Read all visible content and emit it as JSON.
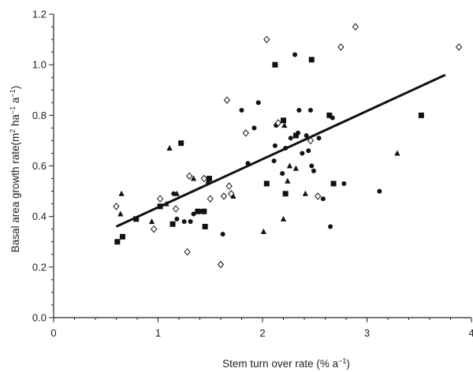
{
  "chart_data": {
    "type": "scatter",
    "title": "",
    "xlabel_parts": [
      "Stem turn over rate (% a",
      "−1",
      ")"
    ],
    "ylabel_parts": [
      "Basal area growth rate(m",
      "2",
      " ha",
      "−1",
      " a",
      "−1",
      ")"
    ],
    "xlim": [
      0,
      4
    ],
    "ylim": [
      0,
      1.2
    ],
    "x_ticks": [
      0,
      1,
      2,
      3,
      4
    ],
    "x_tick_labels": [
      "0",
      "1",
      "2",
      "3",
      "4"
    ],
    "y_ticks": [
      0.0,
      0.2,
      0.4,
      0.6,
      0.8,
      1.0,
      1.2
    ],
    "y_tick_labels": [
      "0.0",
      "0.2",
      "0.4",
      "0.6",
      "0.8",
      "1.0",
      "1.2"
    ],
    "grid": false,
    "legend": "none",
    "series": [
      {
        "marker": "circle",
        "color": "#111111",
        "points": [
          [
            1.15,
            0.49
          ],
          [
            1.18,
            0.39
          ],
          [
            1.25,
            0.38
          ],
          [
            1.31,
            0.38
          ],
          [
            1.34,
            0.41
          ],
          [
            1.4,
            0.42
          ],
          [
            1.62,
            0.33
          ],
          [
            1.8,
            0.82
          ],
          [
            1.86,
            0.61
          ],
          [
            1.92,
            0.75
          ],
          [
            1.96,
            0.85
          ],
          [
            2.11,
            0.62
          ],
          [
            2.12,
            0.68
          ],
          [
            2.13,
            0.76
          ],
          [
            2.19,
            0.57
          ],
          [
            2.22,
            0.67
          ],
          [
            2.27,
            0.71
          ],
          [
            2.31,
            1.04
          ],
          [
            2.34,
            0.73
          ],
          [
            2.35,
            0.82
          ],
          [
            2.38,
            0.65
          ],
          [
            2.42,
            0.72
          ],
          [
            2.44,
            0.66
          ],
          [
            2.46,
            0.82
          ],
          [
            2.47,
            0.6
          ],
          [
            2.49,
            0.58
          ],
          [
            2.54,
            0.71
          ],
          [
            2.58,
            0.47
          ],
          [
            2.65,
            0.36
          ],
          [
            2.67,
            0.79
          ],
          [
            2.78,
            0.53
          ],
          [
            3.12,
            0.5
          ]
        ]
      },
      {
        "marker": "square",
        "color": "#111111",
        "points": [
          [
            0.61,
            0.3
          ],
          [
            0.66,
            0.32
          ],
          [
            0.79,
            0.39
          ],
          [
            1.02,
            0.44
          ],
          [
            1.14,
            0.37
          ],
          [
            1.22,
            0.69
          ],
          [
            1.38,
            0.42
          ],
          [
            1.44,
            0.42
          ],
          [
            1.45,
            0.36
          ],
          [
            1.49,
            0.55
          ],
          [
            2.04,
            0.53
          ],
          [
            2.12,
            1.0
          ],
          [
            2.2,
            0.78
          ],
          [
            2.22,
            0.49
          ],
          [
            2.32,
            0.72
          ],
          [
            2.47,
            1.02
          ],
          [
            2.64,
            0.8
          ],
          [
            2.68,
            0.53
          ],
          [
            3.52,
            0.8
          ]
        ]
      },
      {
        "marker": "triangle",
        "color": "#111111",
        "points": [
          [
            0.64,
            0.41
          ],
          [
            0.65,
            0.49
          ],
          [
            0.94,
            0.38
          ],
          [
            1.08,
            0.45
          ],
          [
            1.11,
            0.67
          ],
          [
            1.18,
            0.49
          ],
          [
            1.34,
            0.55
          ],
          [
            1.48,
            0.54
          ],
          [
            1.72,
            0.48
          ],
          [
            2.01,
            0.34
          ],
          [
            2.2,
            0.39
          ],
          [
            2.24,
            0.54
          ],
          [
            2.26,
            0.6
          ],
          [
            2.32,
            0.59
          ],
          [
            2.41,
            0.49
          ],
          [
            2.21,
            0.76
          ],
          [
            3.29,
            0.65
          ]
        ]
      },
      {
        "marker": "diamond-open",
        "color": "#111111",
        "points": [
          [
            0.6,
            0.44
          ],
          [
            0.96,
            0.35
          ],
          [
            1.02,
            0.47
          ],
          [
            1.17,
            0.43
          ],
          [
            1.28,
            0.26
          ],
          [
            1.3,
            0.56
          ],
          [
            1.44,
            0.55
          ],
          [
            1.5,
            0.47
          ],
          [
            1.6,
            0.21
          ],
          [
            1.63,
            0.48
          ],
          [
            1.66,
            0.86
          ],
          [
            1.68,
            0.52
          ],
          [
            1.7,
            0.49
          ],
          [
            1.84,
            0.73
          ],
          [
            2.04,
            1.1
          ],
          [
            2.15,
            0.77
          ],
          [
            2.46,
            0.7
          ],
          [
            2.53,
            0.48
          ],
          [
            2.75,
            1.07
          ],
          [
            2.89,
            1.15
          ],
          [
            3.88,
            1.07
          ]
        ]
      }
    ],
    "trendline": {
      "x": [
        0.6,
        3.75
      ],
      "y": [
        0.36,
        0.96
      ]
    }
  }
}
